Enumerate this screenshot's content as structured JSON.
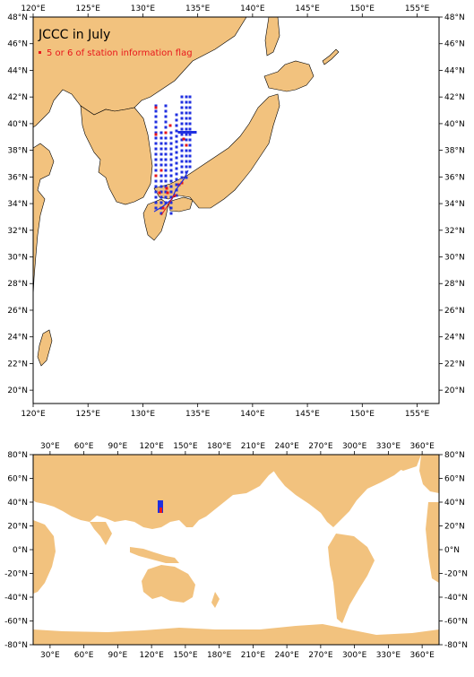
{
  "regional_map": {
    "title": "JCCC in July",
    "legend": {
      "label": "5 or 6 of station information flag",
      "color": "#e8161b"
    },
    "lon_range": [
      120,
      157
    ],
    "lat_range": [
      19,
      48
    ],
    "x_ticks": [
      "120°E",
      "125°E",
      "130°E",
      "135°E",
      "140°E",
      "145°E",
      "150°E",
      "155°E"
    ],
    "y_ticks": [
      "20°N",
      "22°N",
      "24°N",
      "26°N",
      "28°N",
      "30°N",
      "32°N",
      "34°N",
      "36°N",
      "38°N",
      "40°N",
      "42°N",
      "44°N",
      "46°N",
      "48°N"
    ]
  },
  "global_map": {
    "lon_range": [
      15,
      375
    ],
    "lat_range": [
      -80,
      80
    ],
    "x_ticks": [
      "30°E",
      "60°E",
      "90°E",
      "120°E",
      "150°E",
      "180°E",
      "210°E",
      "240°E",
      "270°E",
      "300°E",
      "330°E",
      "360°E"
    ],
    "y_ticks": [
      "80°N",
      "60°N",
      "40°N",
      "20°N",
      "0°N",
      "-20°N",
      "-40°N",
      "-60°N",
      "-80°N"
    ]
  },
  "colors": {
    "land": "#f2c27e",
    "station": "#1f2fe0",
    "flagged": "#e8161b",
    "frame": "#000000"
  }
}
